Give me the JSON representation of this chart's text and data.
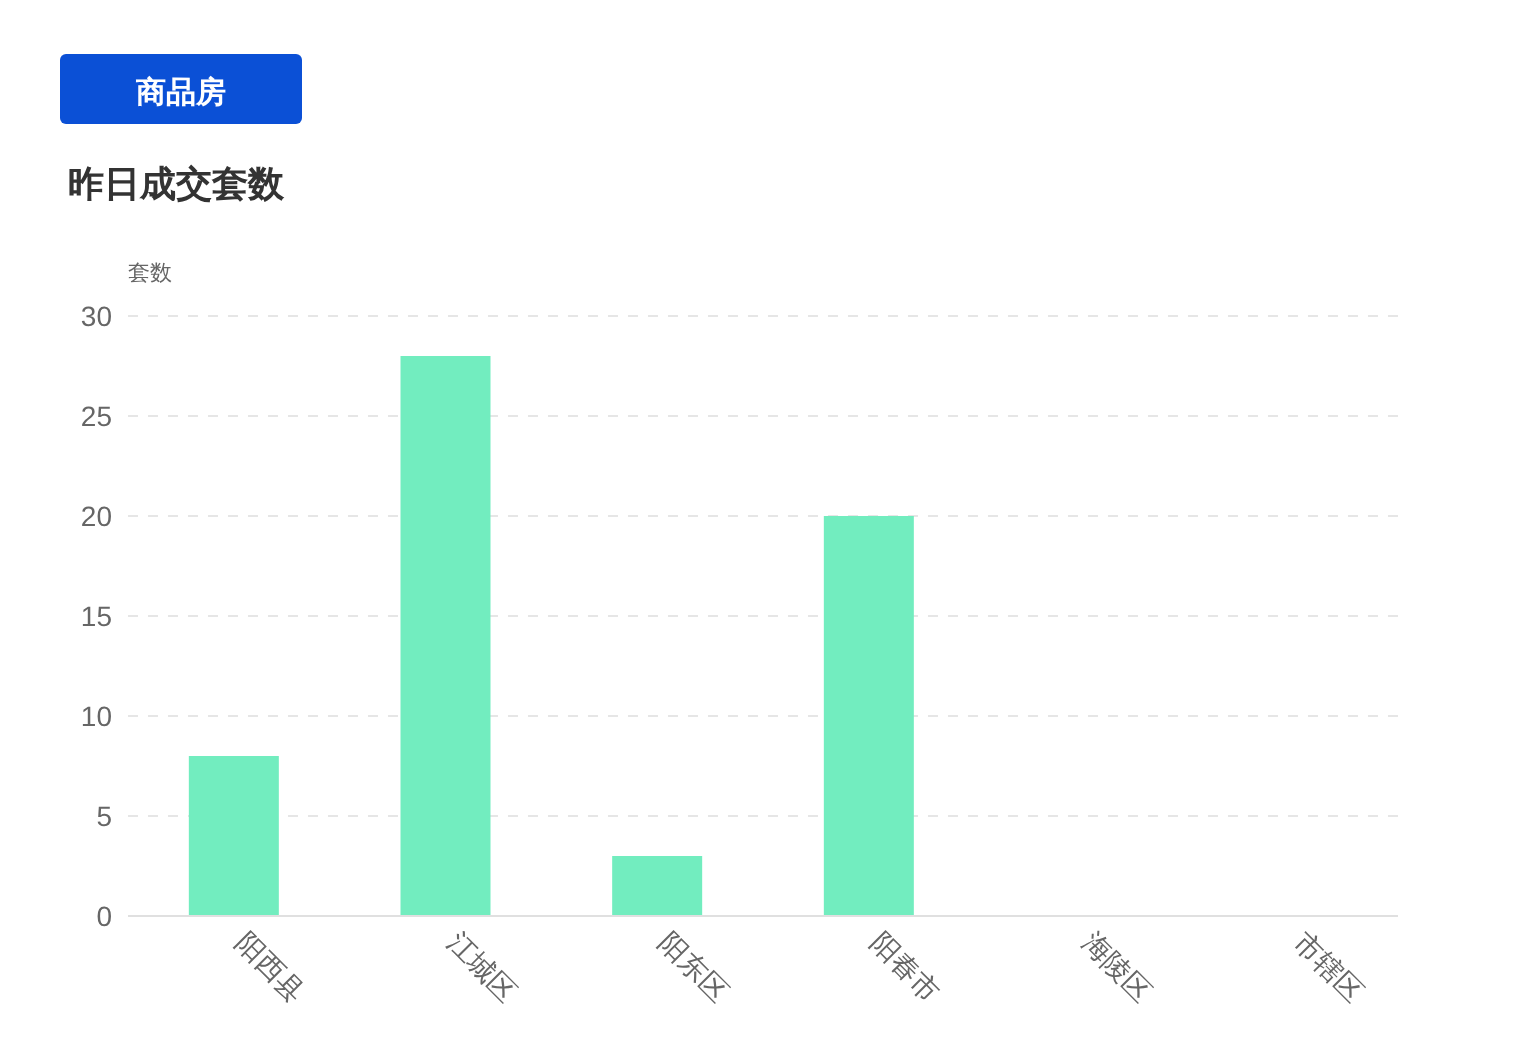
{
  "chart_data": {
    "type": "bar",
    "title": "昨日成交套数",
    "ylabel": "套数",
    "annotations": [
      "商品房"
    ],
    "categories": [
      "阳西县",
      "江城区",
      "阳东区",
      "阳春市",
      "海陵区",
      "市辖区"
    ],
    "values": [
      8,
      28,
      3,
      20,
      0,
      0
    ],
    "color": "#72edbf",
    "ylim": [
      0,
      30
    ],
    "yticks": [
      0,
      5,
      10,
      15,
      20,
      25,
      30
    ],
    "grid": "y"
  }
}
